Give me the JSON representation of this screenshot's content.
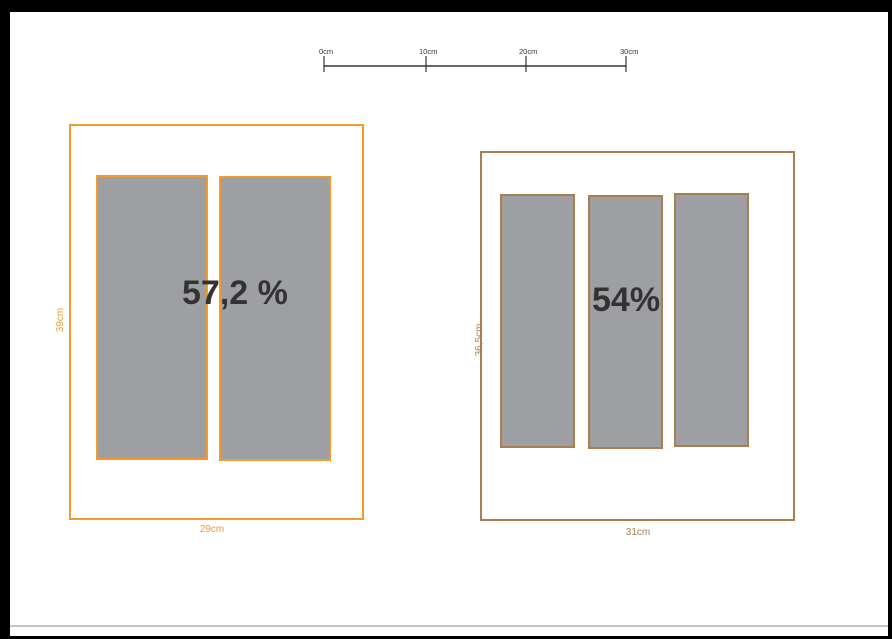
{
  "scale_bar": {
    "ticks": [
      "0cm",
      "10cm",
      "20cm",
      "30cm"
    ]
  },
  "layout_a": {
    "width_label": "29cm",
    "height_label": "39cm",
    "percentage": "57,2 %",
    "panel_count": 2
  },
  "layout_b": {
    "width_label": "31cm",
    "height_label": "36,5cm",
    "percentage": "54%",
    "panel_count": 3
  },
  "colors": {
    "background": "#000000",
    "sheet": "#ffffff",
    "accent_a": "#f39a2b",
    "accent_b": "#a97f4f",
    "panel_fill": "#9d9fa2",
    "text_dark": "#333333",
    "scale_line": "#333333"
  }
}
